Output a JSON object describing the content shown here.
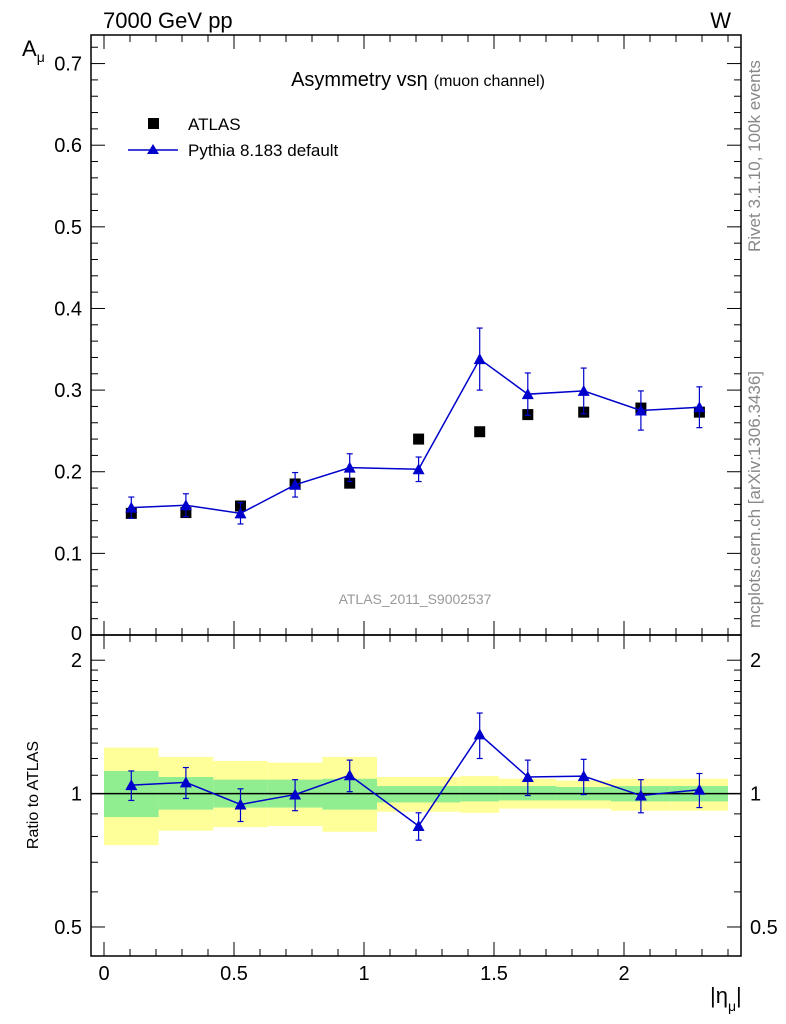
{
  "header": {
    "left": "7000 GeV pp",
    "right": "W"
  },
  "side_texts": {
    "top": "Rivet 3.1.10,  100k events",
    "bottom": "mcplots.cern.ch [arXiv:1306.3436]"
  },
  "watermark": "ATLAS_2011_S9002537",
  "chart_data": {
    "type": "scatter",
    "title_main": "Asymmetry vs",
    "title_symbol": "η",
    "title_sub": "(muon channel)",
    "xlabel_main": "|η",
    "xlabel_sub": "μ",
    "xlabel_end": "|",
    "ylabel_main": "A",
    "ylabel_sub": "μ",
    "ratio_ylabel": "Ratio to ATLAS",
    "xlim": [
      -0.05,
      2.45
    ],
    "ylim": [
      0,
      0.735
    ],
    "ratio_ylim": [
      0.43,
      2.28
    ],
    "x_ticks": [
      "0",
      "0.5",
      "1",
      "1.5",
      "2"
    ],
    "y_ticks": [
      "0.1",
      "0.2",
      "0.3",
      "0.4",
      "0.5",
      "0.6",
      "0.7"
    ],
    "y_zero_label": "0",
    "ratio_ticks": [
      "0.5",
      "1",
      "2"
    ],
    "bin_edges": [
      0,
      0.21,
      0.42,
      0.63,
      0.84,
      1.05,
      1.37,
      1.52,
      1.74,
      1.95,
      2.18,
      2.4
    ],
    "x": [
      0.105,
      0.315,
      0.525,
      0.735,
      0.945,
      1.21,
      1.445,
      1.63,
      1.845,
      2.065,
      2.29
    ],
    "legend": {
      "data": "ATLAS",
      "mc": "Pythia 8.183 default"
    },
    "series": [
      {
        "name": "ATLAS",
        "values": [
          0.149,
          0.15,
          0.158,
          0.185,
          0.186,
          0.24,
          0.249,
          0.27,
          0.273,
          0.278,
          0.273
        ],
        "errors": [
          0.018,
          0.012,
          0.01,
          0.01,
          0.014,
          0.009,
          0.008,
          0.01,
          0.008,
          0.01,
          0.01
        ]
      },
      {
        "name": "Pythia 8.183 default",
        "values": [
          0.156,
          0.159,
          0.149,
          0.184,
          0.205,
          0.203,
          0.338,
          0.295,
          0.299,
          0.275,
          0.279
        ],
        "errors": [
          0.013,
          0.014,
          0.013,
          0.015,
          0.017,
          0.015,
          0.038,
          0.026,
          0.028,
          0.024,
          0.025
        ]
      }
    ],
    "ratio": [
      1.045,
      1.06,
      0.945,
      0.995,
      1.1,
      0.845,
      1.36,
      1.09,
      1.095,
      0.99,
      1.02
    ],
    "ratio_errors": [
      0.08,
      0.085,
      0.08,
      0.08,
      0.09,
      0.06,
      0.16,
      0.1,
      0.1,
      0.085,
      0.09
    ],
    "band_inner": [
      [
        0.885,
        1.125
      ],
      [
        0.92,
        1.09
      ],
      [
        0.93,
        1.075
      ],
      [
        0.93,
        1.075
      ],
      [
        0.92,
        1.08
      ],
      [
        0.955,
        1.04
      ],
      [
        0.96,
        1.04
      ],
      [
        0.965,
        1.04
      ],
      [
        0.965,
        1.035
      ],
      [
        0.96,
        1.04
      ],
      [
        0.96,
        1.04
      ]
    ],
    "band_outer": [
      [
        0.765,
        1.27
      ],
      [
        0.825,
        1.21
      ],
      [
        0.84,
        1.185
      ],
      [
        0.845,
        1.175
      ],
      [
        0.82,
        1.21
      ],
      [
        0.91,
        1.09
      ],
      [
        0.905,
        1.095
      ],
      [
        0.925,
        1.08
      ],
      [
        0.925,
        1.07
      ],
      [
        0.915,
        1.08
      ],
      [
        0.915,
        1.08
      ]
    ],
    "colors": {
      "data": "#000000",
      "mc": "#0000cc",
      "band_inner": "#90ee90",
      "band_outer": "#ffff99"
    }
  }
}
